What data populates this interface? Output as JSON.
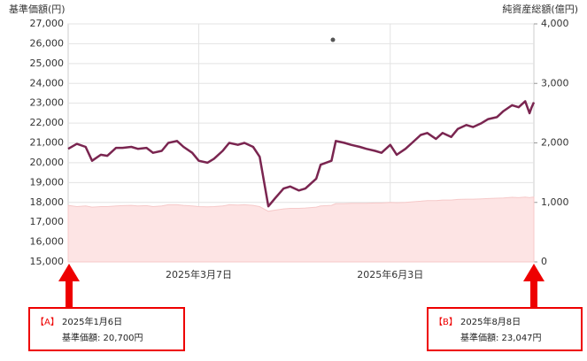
{
  "chart_data": {
    "type": "line",
    "y_axis_title": "基準価額(円)",
    "y2_axis_title": "純資産総額(億円)",
    "x": [
      "2025-01-06",
      "2025-01-10",
      "2025-01-14",
      "2025-01-17",
      "2025-01-21",
      "2025-01-24",
      "2025-01-28",
      "2025-01-31",
      "2025-02-04",
      "2025-02-07",
      "2025-02-11",
      "2025-02-14",
      "2025-02-18",
      "2025-02-21",
      "2025-02-25",
      "2025-02-28",
      "2025-03-04",
      "2025-03-07",
      "2025-03-11",
      "2025-03-14",
      "2025-03-18",
      "2025-03-21",
      "2025-03-25",
      "2025-03-28",
      "2025-04-01",
      "2025-04-04",
      "2025-04-08",
      "2025-04-11",
      "2025-04-15",
      "2025-04-18",
      "2025-04-22",
      "2025-04-25",
      "2025-04-30",
      "2025-05-02",
      "2025-05-07",
      "2025-05-09",
      "2025-05-13",
      "2025-05-16",
      "2025-05-20",
      "2025-05-23",
      "2025-05-27",
      "2025-05-30",
      "2025-06-03",
      "2025-06-06",
      "2025-06-10",
      "2025-06-13",
      "2025-06-17",
      "2025-06-20",
      "2025-06-24",
      "2025-06-27",
      "2025-07-01",
      "2025-07-04",
      "2025-07-08",
      "2025-07-11",
      "2025-07-15",
      "2025-07-18",
      "2025-07-22",
      "2025-07-25",
      "2025-07-29",
      "2025-08-01",
      "2025-08-04",
      "2025-08-06",
      "2025-08-07",
      "2025-08-08"
    ],
    "series": [
      {
        "name": "基準価額",
        "color": "#7a2550",
        "values": [
          20700,
          20950,
          20800,
          20100,
          20400,
          20350,
          20750,
          20750,
          20800,
          20700,
          20750,
          20500,
          20600,
          21000,
          21100,
          20800,
          20500,
          20100,
          20000,
          20200,
          20600,
          21000,
          20900,
          21000,
          20800,
          20300,
          17800,
          18200,
          18700,
          18800,
          18600,
          18700,
          19200,
          19900,
          20100,
          21100,
          21000,
          20900,
          20800,
          20700,
          20600,
          20500,
          20900,
          20400,
          20700,
          21000,
          21400,
          21500,
          21200,
          21500,
          21300,
          21700,
          21900,
          21800,
          22000,
          22200,
          22300,
          22600,
          22900,
          22800,
          23100,
          22500,
          22800,
          23047
        ]
      },
      {
        "name": "純資産総額",
        "color": "#fde4e4",
        "axis": "y2",
        "values": [
          950,
          930,
          940,
          920,
          930,
          930,
          940,
          945,
          950,
          940,
          945,
          930,
          940,
          960,
          960,
          950,
          940,
          930,
          925,
          930,
          940,
          960,
          955,
          960,
          950,
          930,
          850,
          870,
          890,
          900,
          900,
          905,
          920,
          940,
          950,
          980,
          980,
          985,
          985,
          985,
          990,
          990,
          1000,
          995,
          1000,
          1010,
          1020,
          1030,
          1030,
          1040,
          1040,
          1050,
          1055,
          1055,
          1060,
          1065,
          1070,
          1075,
          1085,
          1080,
          1090,
          1080,
          1085,
          1090
        ]
      }
    ],
    "xlim": [
      "2025-01-06",
      "2025-08-08"
    ],
    "xticks": [
      {
        "value": "2025-03-07",
        "label": "2025年3月7日"
      },
      {
        "value": "2025-06-03",
        "label": "2025年6月3日"
      }
    ],
    "ylim": [
      15000,
      27000
    ],
    "yticks": [
      {
        "value": 15000,
        "label": "15,000"
      },
      {
        "value": 16000,
        "label": "16,000"
      },
      {
        "value": 17000,
        "label": "17,000"
      },
      {
        "value": 18000,
        "label": "18,000"
      },
      {
        "value": 19000,
        "label": "19,000"
      },
      {
        "value": 20000,
        "label": "20,000"
      },
      {
        "value": 21000,
        "label": "21,000"
      },
      {
        "value": 22000,
        "label": "22,000"
      },
      {
        "value": 23000,
        "label": "23,000"
      },
      {
        "value": 24000,
        "label": "24,000"
      },
      {
        "value": 25000,
        "label": "25,000"
      },
      {
        "value": 26000,
        "label": "26,000"
      },
      {
        "value": 27000,
        "label": "27,000"
      }
    ],
    "y2lim": [
      0,
      4000
    ],
    "y2ticks": [
      0,
      {
        "value": 1000,
        "label": "1,000"
      },
      {
        "value": 2000,
        "label": "2,000"
      },
      {
        "value": 3000,
        "label": "3,000"
      },
      {
        "value": 4000,
        "label": "4,000"
      }
    ],
    "grid": true,
    "annotations": [
      {
        "marker": "【A】",
        "date": "2025年1月6日",
        "text": "基準価額: 20,700円"
      },
      {
        "marker": "【B】",
        "date": "2025年8月8日",
        "text": "基準価額: 23,047円"
      }
    ]
  }
}
